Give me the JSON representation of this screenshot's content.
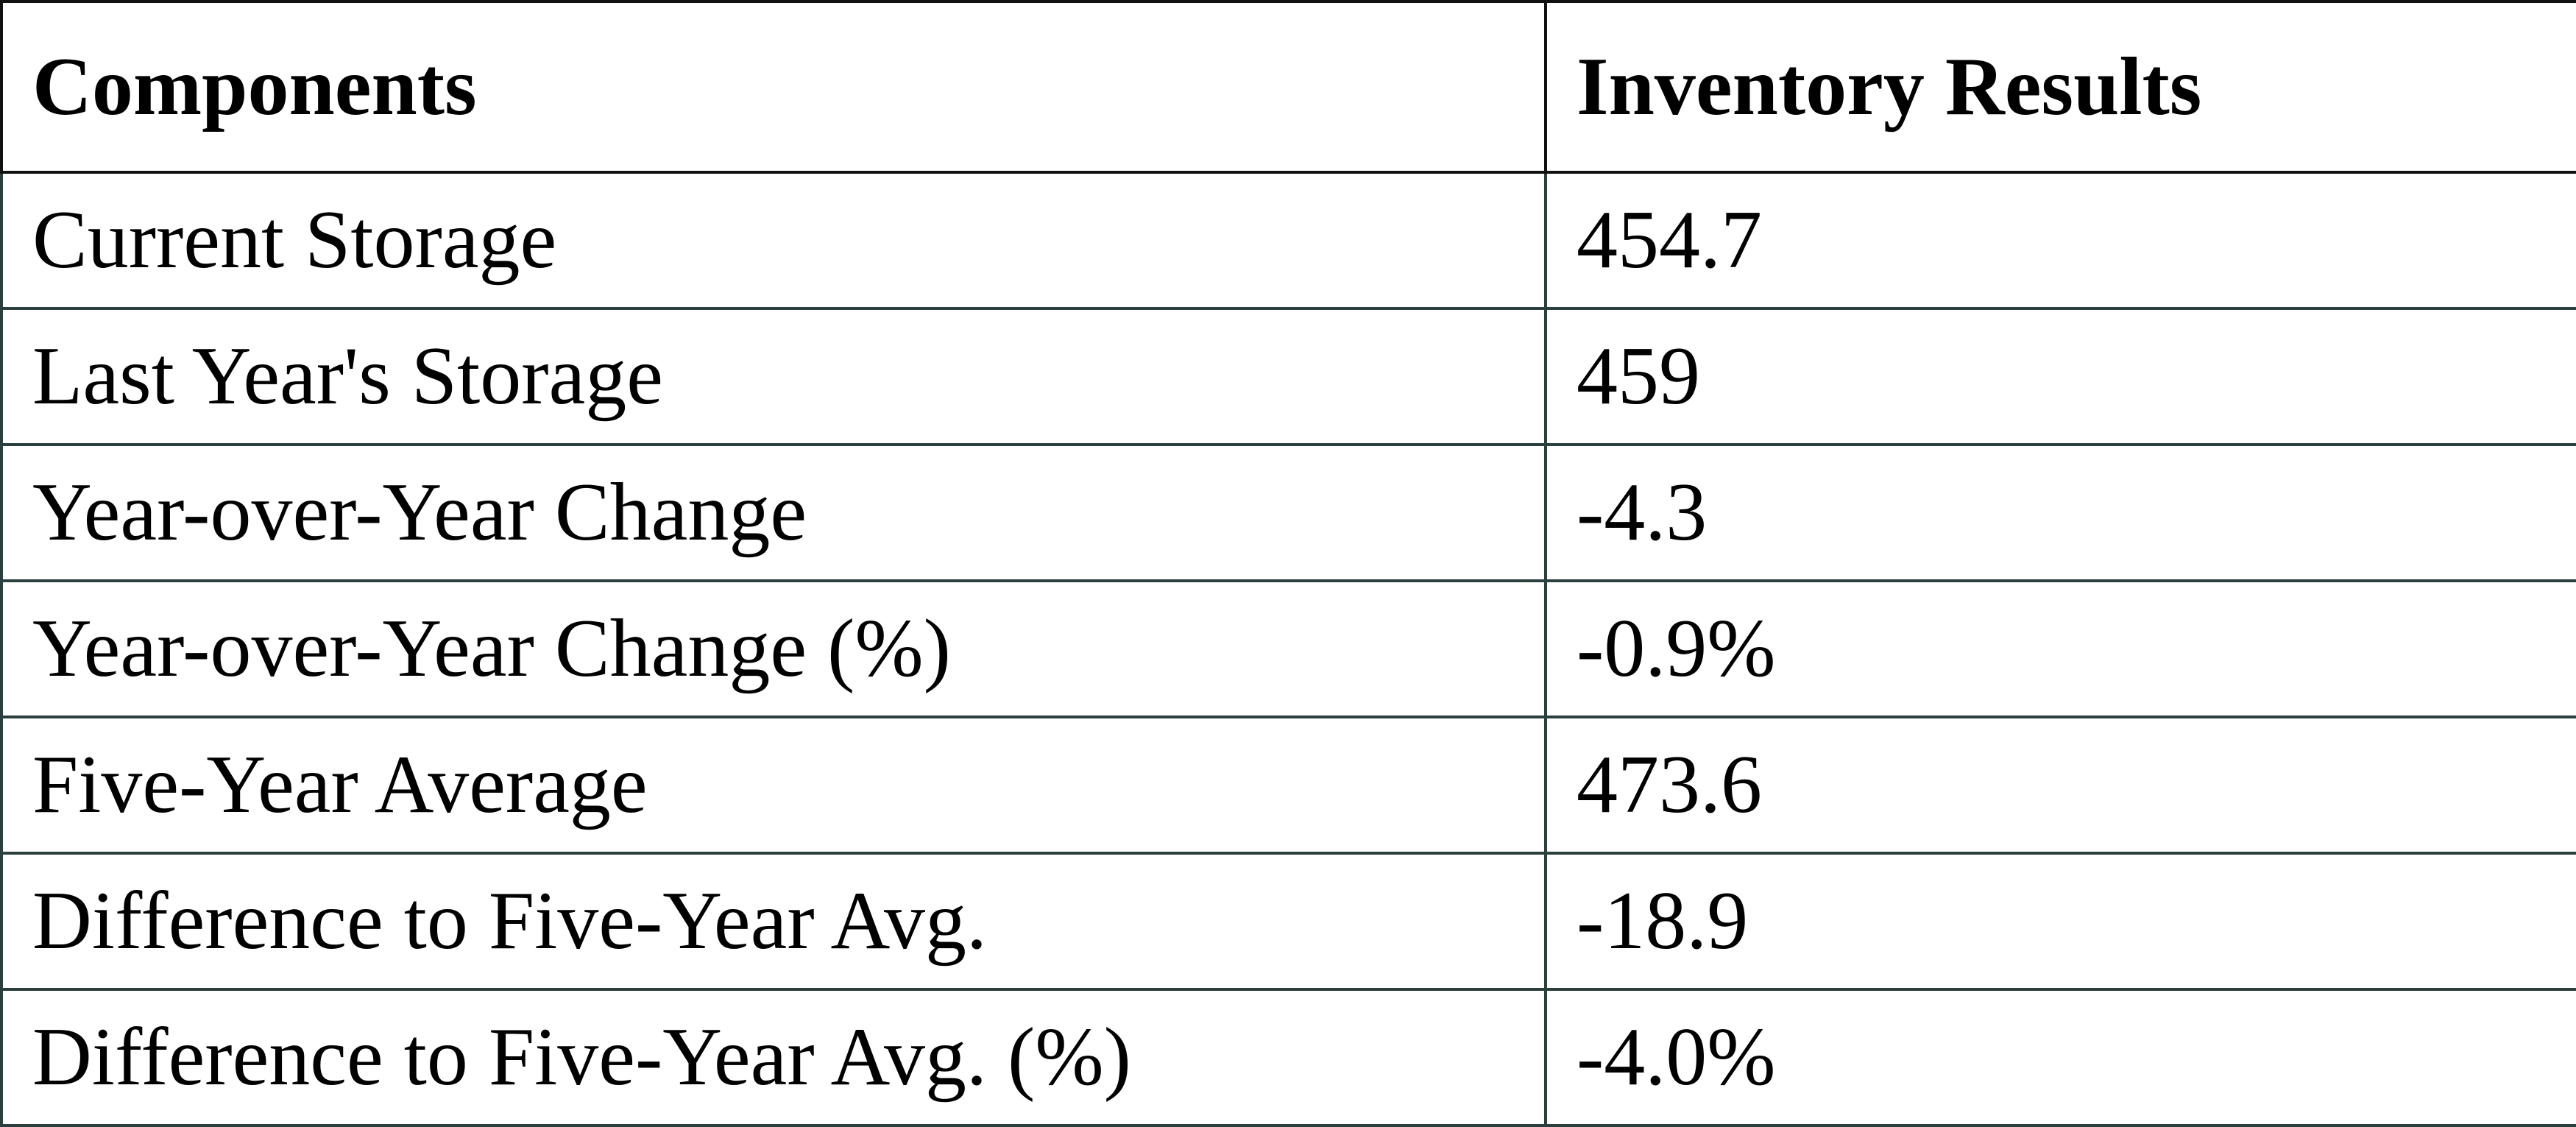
{
  "table": {
    "header": [
      "Components",
      "Inventory Results"
    ],
    "rows": [
      [
        "Current Storage",
        "454.7"
      ],
      [
        "Last Year's Storage",
        "459"
      ],
      [
        "Year-over-Year Change",
        "-4.3"
      ],
      [
        "Year-over-Year Change (%)",
        "-0.9%"
      ],
      [
        "Five-Year Average",
        "473.6"
      ],
      [
        "Difference to Five-Year Avg.",
        "-18.9"
      ],
      [
        "Difference to Five-Year Avg. (%)",
        "-4.0%"
      ]
    ]
  }
}
